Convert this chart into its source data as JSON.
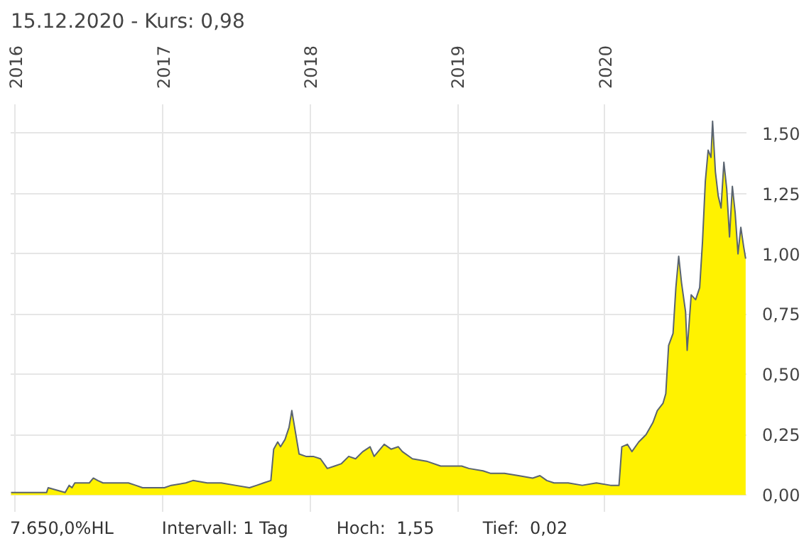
{
  "chart_data": {
    "type": "area",
    "title": "15.12.2020  -  Kurs: 0,98",
    "x": [
      "2015-12-21",
      "2016-03-18",
      "2016-03-22",
      "2016-05-03",
      "2016-05-13",
      "2016-05-20",
      "2016-05-27",
      "2016-07-02",
      "2016-07-12",
      "2016-07-23",
      "2016-08-05",
      "2016-09-02",
      "2016-10-07",
      "2016-10-25",
      "2016-11-11",
      "2016-12-09",
      "2017-01-04",
      "2017-01-21",
      "2017-02-26",
      "2017-03-16",
      "2017-04-20",
      "2017-05-25",
      "2017-06-29",
      "2017-08-03",
      "2017-08-21",
      "2017-09-07",
      "2017-09-25",
      "2017-10-02",
      "2017-10-12",
      "2017-10-19",
      "2017-10-30",
      "2017-11-09",
      "2017-11-16",
      "2017-11-23",
      "2017-12-04",
      "2017-12-21",
      "2018-01-08",
      "2018-01-26",
      "2018-02-12",
      "2018-03-02",
      "2018-03-19",
      "2018-04-06",
      "2018-04-23",
      "2018-05-11",
      "2018-05-29",
      "2018-06-08",
      "2018-07-03",
      "2018-07-20",
      "2018-08-07",
      "2018-08-17",
      "2018-09-11",
      "2018-10-16",
      "2018-11-20",
      "2018-12-25",
      "2019-01-11",
      "2019-01-29",
      "2019-03-05",
      "2019-03-23",
      "2019-04-27",
      "2019-06-01",
      "2019-07-06",
      "2019-07-24",
      "2019-08-10",
      "2019-08-28",
      "2019-10-02",
      "2019-11-06",
      "2019-12-11",
      "2020-01-15",
      "2020-02-05",
      "2020-02-12",
      "2020-02-26",
      "2020-03-08",
      "2020-03-25",
      "2020-04-12",
      "2020-04-29",
      "2020-05-10",
      "2020-05-24",
      "2020-05-31",
      "2020-06-07",
      "2020-06-18",
      "2020-06-25",
      "2020-07-02",
      "2020-07-09",
      "2020-07-19",
      "2020-07-23",
      "2020-08-02",
      "2020-08-13",
      "2020-08-23",
      "2020-08-30",
      "2020-09-06",
      "2020-09-13",
      "2020-09-20",
      "2020-09-24",
      "2020-10-01",
      "2020-10-08",
      "2020-10-15",
      "2020-10-22",
      "2020-10-29",
      "2020-11-05",
      "2020-11-12",
      "2020-11-19",
      "2020-11-26",
      "2020-12-03",
      "2020-12-10",
      "2020-12-15"
    ],
    "series": [
      {
        "color": "#fff200",
        "values": [
          0.01,
          0.01,
          0.03,
          0.01,
          0.04,
          0.03,
          0.05,
          0.05,
          0.07,
          0.06,
          0.05,
          0.05,
          0.05,
          0.04,
          0.03,
          0.03,
          0.03,
          0.04,
          0.05,
          0.06,
          0.05,
          0.05,
          0.04,
          0.03,
          0.04,
          0.05,
          0.06,
          0.19,
          0.22,
          0.2,
          0.23,
          0.28,
          0.35,
          0.28,
          0.17,
          0.16,
          0.16,
          0.15,
          0.11,
          0.12,
          0.13,
          0.16,
          0.15,
          0.18,
          0.2,
          0.16,
          0.21,
          0.19,
          0.2,
          0.18,
          0.15,
          0.14,
          0.12,
          0.12,
          0.12,
          0.11,
          0.1,
          0.09,
          0.09,
          0.08,
          0.07,
          0.08,
          0.06,
          0.05,
          0.05,
          0.04,
          0.05,
          0.04,
          0.04,
          0.2,
          0.21,
          0.18,
          0.22,
          0.25,
          0.3,
          0.35,
          0.38,
          0.42,
          0.62,
          0.67,
          0.86,
          0.99,
          0.88,
          0.76,
          0.6,
          0.83,
          0.81,
          0.86,
          1.05,
          1.3,
          1.43,
          1.4,
          1.55,
          1.34,
          1.24,
          1.19,
          1.38,
          1.27,
          1.07,
          1.28,
          1.17,
          1.0,
          1.11,
          1.03,
          0.98
        ]
      }
    ],
    "xlim": [
      "2015-12-20",
      "2020-12-17"
    ],
    "ylim": [
      -0.07,
      1.62
    ],
    "xticks": [
      {
        "value": "2016-01-01",
        "label": "2016"
      },
      {
        "value": "2017-01-01",
        "label": "2017"
      },
      {
        "value": "2018-01-01",
        "label": "2018"
      },
      {
        "value": "2019-01-01",
        "label": "2019"
      },
      {
        "value": "2020-01-01",
        "label": "2020"
      }
    ],
    "yticks": [
      {
        "value": 0,
        "label": "0,00"
      },
      {
        "value": 0.25,
        "label": "0,25"
      },
      {
        "value": 0.5,
        "label": "0,50"
      },
      {
        "value": 0.75,
        "label": "0,75"
      },
      {
        "value": 1.0,
        "label": "1,00"
      },
      {
        "value": 1.25,
        "label": "1,25"
      },
      {
        "value": 1.5,
        "label": "1,50"
      }
    ],
    "grid": true,
    "annotations": [
      "7.650,0%HL",
      "Intervall: 1 Tag",
      "Hoch:  1,55",
      "Tief:  0,02"
    ]
  }
}
